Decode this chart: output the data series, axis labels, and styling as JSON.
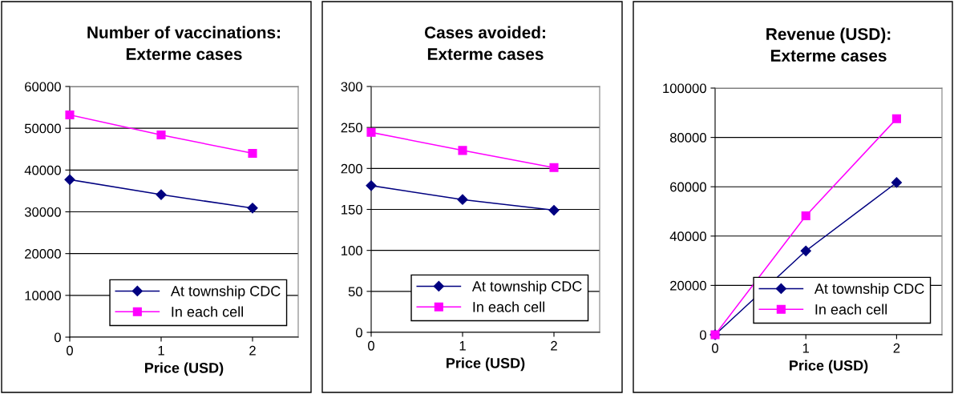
{
  "chart_data": [
    {
      "type": "line",
      "title": "Number of vaccinations:\nExterme cases",
      "xlabel": "Price (USD)",
      "categories": [
        "0",
        "1",
        "2"
      ],
      "ylim": [
        0,
        60000
      ],
      "yticks": [
        0,
        10000,
        20000,
        30000,
        40000,
        50000,
        60000
      ],
      "grid": "y",
      "legend": "bottom right",
      "series": [
        {
          "name": "At township CDC",
          "color": "#000080",
          "marker": "diamond",
          "values": [
            37700,
            34100,
            30900
          ]
        },
        {
          "name": "In each cell",
          "color": "#ff00ff",
          "marker": "square",
          "values": [
            53200,
            48400,
            44000
          ]
        }
      ]
    },
    {
      "type": "line",
      "title": "Cases avoided:\nExterme cases",
      "xlabel": "Price (USD)",
      "categories": [
        "0",
        "1",
        "2"
      ],
      "ylim": [
        0,
        300
      ],
      "yticks": [
        0,
        50,
        100,
        150,
        200,
        250,
        300
      ],
      "grid": "y",
      "legend": "bottom right",
      "series": [
        {
          "name": "At township CDC",
          "color": "#000080",
          "marker": "diamond",
          "values": [
            179,
            162,
            149
          ]
        },
        {
          "name": "In each cell",
          "color": "#ff00ff",
          "marker": "square",
          "values": [
            244,
            222,
            201
          ]
        }
      ]
    },
    {
      "type": "line",
      "title": "Revenue (USD):\nExterme cases",
      "xlabel": "Price (USD)",
      "categories": [
        "0",
        "1",
        "2"
      ],
      "ylim": [
        0,
        100000
      ],
      "yticks": [
        0,
        20000,
        40000,
        60000,
        80000,
        100000
      ],
      "grid": "y",
      "legend": "bottom right",
      "series": [
        {
          "name": "At township CDC",
          "color": "#000080",
          "marker": "diamond",
          "values": [
            0,
            34000,
            61700
          ]
        },
        {
          "name": "In each cell",
          "color": "#ff00ff",
          "marker": "square",
          "values": [
            0,
            48200,
            87600
          ]
        }
      ]
    }
  ]
}
